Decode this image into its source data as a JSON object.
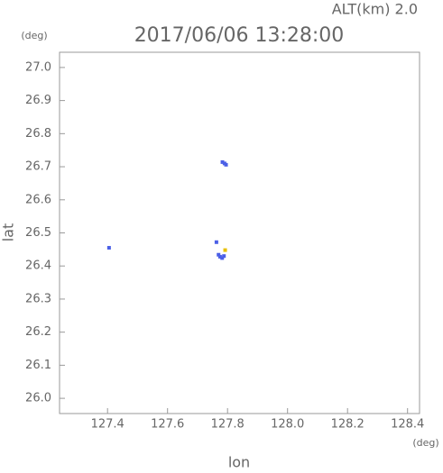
{
  "chart_data": {
    "type": "scatter",
    "title": "2017/06/06 13:28:00",
    "subtitle": "ALT(km) 2.0",
    "y_unit": "(deg)",
    "x_unit": "(deg)",
    "x_label": "lon",
    "y_label": "lat",
    "xlim": [
      127.24,
      128.44
    ],
    "ylim": [
      25.954,
      27.046
    ],
    "xticks": [
      127.4,
      127.6,
      127.8,
      {
        "value": 128,
        "label": "128.0"
      },
      128.2,
      128.4
    ],
    "yticks": [
      {
        "value": 26,
        "label": "26.0"
      },
      26.1,
      26.2,
      26.3,
      26.4,
      26.5,
      26.6,
      26.7,
      26.8,
      26.9,
      {
        "value": 27,
        "label": "27.0"
      }
    ],
    "series": [
      {
        "color": "#4b5fe6",
        "x": [
          127.405,
          127.783,
          127.79,
          127.795,
          127.763,
          127.77,
          127.775,
          127.782,
          127.788
        ],
        "values": [
          26.455,
          26.714,
          26.71,
          26.706,
          26.472,
          26.434,
          26.428,
          26.424,
          26.43
        ]
      },
      {
        "color": "#e8c000",
        "x": [
          127.792
        ],
        "values": [
          26.448
        ]
      }
    ]
  }
}
